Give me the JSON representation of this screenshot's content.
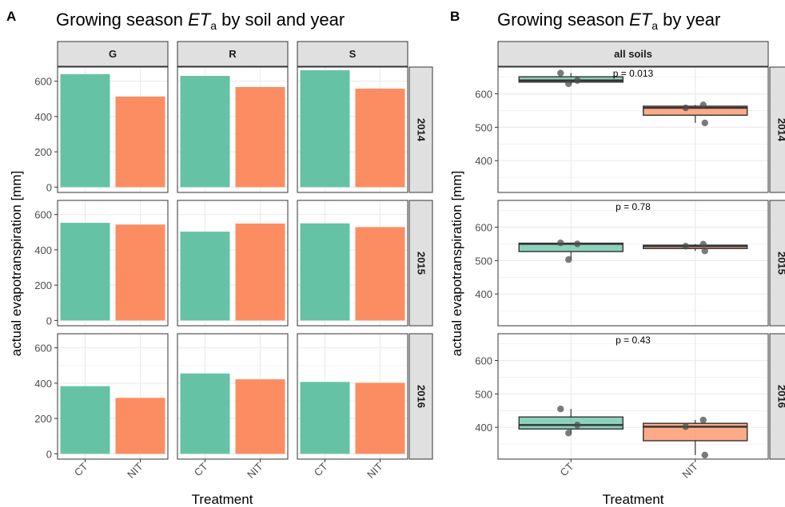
{
  "panel_a": {
    "letter": "A",
    "title_prefix": "Growing season ",
    "title_et": "ET",
    "title_sub": "a",
    "title_suffix": " by soil and year"
  },
  "panel_b": {
    "letter": "B",
    "title_prefix": "Growing season ",
    "title_et": "ET",
    "title_sub": "a",
    "title_suffix": " by year",
    "strip": "all soils"
  },
  "ylabel": "actual evapotranspiration [mm]",
  "xlabel": "Treatment",
  "colors": {
    "CT": "#66c2a5",
    "NIT": "#fc8d62",
    "strip_bg": "#e0e0e0",
    "grid": "#ebebeb",
    "point": "#4d4d4d"
  },
  "chart_data": [
    {
      "type": "bar",
      "panel": "A",
      "categories": [
        "CT",
        "NIT"
      ],
      "soils": [
        "G",
        "R",
        "S"
      ],
      "years": [
        "2014",
        "2015",
        "2016"
      ],
      "yticks": [
        0,
        200,
        400,
        600
      ],
      "ylim": [
        -30,
        680
      ],
      "values": {
        "2014": {
          "G": [
            640,
            513
          ],
          "R": [
            630,
            567
          ],
          "S": [
            662,
            558
          ]
        },
        "2015": {
          "G": [
            553,
            543
          ],
          "R": [
            503,
            549
          ],
          "S": [
            550,
            529
          ]
        },
        "2016": {
          "G": [
            383,
            317
          ],
          "R": [
            455,
            422
          ],
          "S": [
            407,
            402
          ]
        }
      },
      "xlabel": "Treatment",
      "ylabel": "actual evapotranspiration [mm]",
      "grid": true
    },
    {
      "type": "box",
      "panel": "B",
      "categories": [
        "CT",
        "NIT"
      ],
      "years": [
        "2014",
        "2015",
        "2016"
      ],
      "yticks": [
        400,
        500,
        600
      ],
      "ylim": [
        305,
        680
      ],
      "p_values": {
        "2014": "p = 0.013",
        "2015": "p = 0.78",
        "2016": "p = 0.43"
      },
      "boxes": {
        "2014": {
          "CT": {
            "min": 630,
            "q1": 635,
            "median": 640,
            "q3": 651,
            "max": 662
          },
          "NIT": {
            "min": 513,
            "q1": 536,
            "median": 558,
            "q3": 563,
            "max": 567
          }
        },
        "2015": {
          "CT": {
            "min": 503,
            "q1": 527,
            "median": 550,
            "q3": 552,
            "max": 553
          },
          "NIT": {
            "min": 529,
            "q1": 536,
            "median": 543,
            "q3": 546,
            "max": 549
          }
        },
        "2016": {
          "CT": {
            "min": 383,
            "q1": 395,
            "median": 407,
            "q3": 431,
            "max": 455
          },
          "NIT": {
            "min": 317,
            "q1": 360,
            "median": 402,
            "q3": 412,
            "max": 422
          }
        }
      },
      "points": {
        "2014": {
          "CT": [
            630,
            640,
            662
          ],
          "NIT": [
            513,
            558,
            567
          ]
        },
        "2015": {
          "CT": [
            503,
            550,
            553
          ],
          "NIT": [
            529,
            543,
            549
          ]
        },
        "2016": {
          "CT": [
            383,
            407,
            455
          ],
          "NIT": [
            317,
            402,
            422
          ]
        }
      },
      "xlabel": "Treatment",
      "ylabel": "actual evapotranspiration [mm]",
      "grid": true
    }
  ]
}
